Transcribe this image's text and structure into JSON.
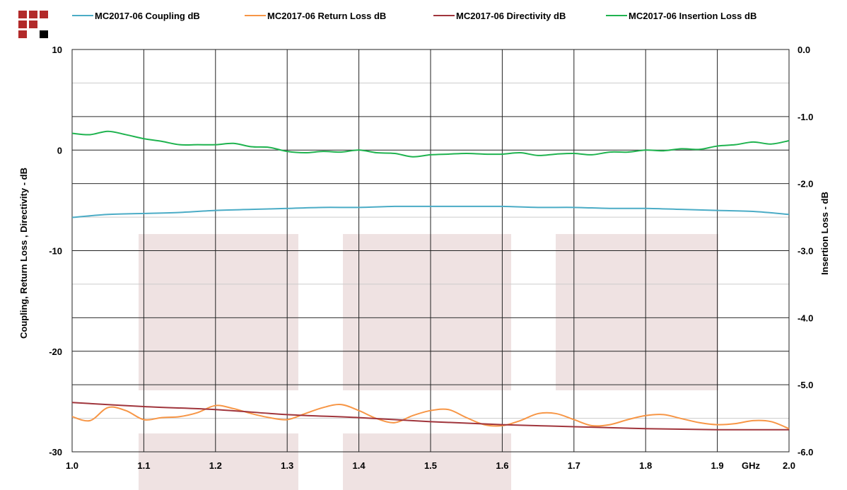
{
  "chart_data": {
    "type": "line",
    "title": "",
    "xlabel": "GHz",
    "ylabel": "Coupling, Return Loss , Directivity - dB",
    "y2label": "Insertion Loss - dB",
    "xlim": [
      1.0,
      2.0
    ],
    "ylim": [
      -30,
      10
    ],
    "y2lim": [
      -6.0,
      0.0
    ],
    "x_ticks": [
      "1.0",
      "1.1",
      "1.2",
      "1.3",
      "1.4",
      "1.5",
      "1.6",
      "1.7",
      "1.8",
      "1.9",
      "2.0"
    ],
    "y_ticks": [
      "10",
      "0",
      "-10",
      "-20",
      "-30"
    ],
    "y2_ticks": [
      "0.0",
      "-1.0",
      "-2.0",
      "-3.0",
      "-4.0",
      "-5.0",
      "-6.0"
    ],
    "grid": true,
    "legend_position": "top",
    "series": [
      {
        "name": "MC2017-06 Coupling dB",
        "color": "#4bacc6",
        "axis": "left",
        "x": [
          1.0,
          1.05,
          1.1,
          1.15,
          1.2,
          1.25,
          1.3,
          1.35,
          1.4,
          1.45,
          1.5,
          1.55,
          1.6,
          1.65,
          1.7,
          1.75,
          1.8,
          1.85,
          1.9,
          1.95,
          2.0
        ],
        "values": [
          -6.7,
          -6.4,
          -6.3,
          -6.2,
          -6.0,
          -5.9,
          -5.8,
          -5.7,
          -5.7,
          -5.6,
          -5.6,
          -5.6,
          -5.6,
          -5.7,
          -5.7,
          -5.8,
          -5.8,
          -5.9,
          -6.0,
          -6.1,
          -6.4
        ]
      },
      {
        "name": "MC2017-06 Return Loss dB",
        "color": "#f79646",
        "axis": "left",
        "x": [
          1.0,
          1.025,
          1.05,
          1.075,
          1.1,
          1.125,
          1.15,
          1.175,
          1.2,
          1.225,
          1.25,
          1.275,
          1.3,
          1.325,
          1.35,
          1.375,
          1.4,
          1.425,
          1.45,
          1.475,
          1.5,
          1.525,
          1.55,
          1.575,
          1.6,
          1.625,
          1.65,
          1.675,
          1.7,
          1.725,
          1.75,
          1.775,
          1.8,
          1.825,
          1.85,
          1.875,
          1.9,
          1.925,
          1.95,
          1.975,
          2.0
        ],
        "values": [
          -26.5,
          -26.9,
          -25.6,
          -25.9,
          -26.8,
          -26.6,
          -26.5,
          -26.1,
          -25.4,
          -25.7,
          -26.2,
          -26.6,
          -26.8,
          -26.2,
          -25.6,
          -25.3,
          -25.9,
          -26.7,
          -27.1,
          -26.4,
          -25.9,
          -25.8,
          -26.6,
          -27.3,
          -27.4,
          -26.9,
          -26.2,
          -26.2,
          -26.8,
          -27.4,
          -27.3,
          -26.8,
          -26.4,
          -26.3,
          -26.7,
          -27.1,
          -27.3,
          -27.2,
          -26.9,
          -27.0,
          -27.7
        ]
      },
      {
        "name": "MC2017-06 Directivity dB",
        "color": "#a0353c",
        "axis": "left",
        "x": [
          1.0,
          1.1,
          1.2,
          1.3,
          1.4,
          1.5,
          1.6,
          1.7,
          1.8,
          1.9,
          2.0
        ],
        "values": [
          -25.1,
          -25.5,
          -25.8,
          -26.3,
          -26.6,
          -27.0,
          -27.3,
          -27.5,
          -27.7,
          -27.8,
          -27.8
        ]
      },
      {
        "name": "MC2017-06 Insertion Loss dB",
        "color": "#1fb34f",
        "axis": "right",
        "x": [
          1.0,
          1.025,
          1.05,
          1.075,
          1.1,
          1.125,
          1.15,
          1.175,
          1.2,
          1.225,
          1.25,
          1.275,
          1.3,
          1.325,
          1.35,
          1.375,
          1.4,
          1.425,
          1.45,
          1.475,
          1.5,
          1.525,
          1.55,
          1.575,
          1.6,
          1.625,
          1.65,
          1.675,
          1.7,
          1.725,
          1.75,
          1.775,
          1.8,
          1.825,
          1.85,
          1.875,
          1.9,
          1.925,
          1.95,
          1.975,
          2.0
        ],
        "values": [
          -1.25,
          -1.27,
          -1.22,
          -1.27,
          -1.33,
          -1.37,
          -1.42,
          -1.42,
          -1.42,
          -1.4,
          -1.45,
          -1.46,
          -1.52,
          -1.54,
          -1.52,
          -1.53,
          -1.5,
          -1.54,
          -1.55,
          -1.6,
          -1.57,
          -1.56,
          -1.55,
          -1.56,
          -1.56,
          -1.54,
          -1.58,
          -1.56,
          -1.55,
          -1.57,
          -1.53,
          -1.53,
          -1.5,
          -1.51,
          -1.48,
          -1.49,
          -1.44,
          -1.42,
          -1.38,
          -1.41,
          -1.36
        ]
      }
    ]
  }
}
